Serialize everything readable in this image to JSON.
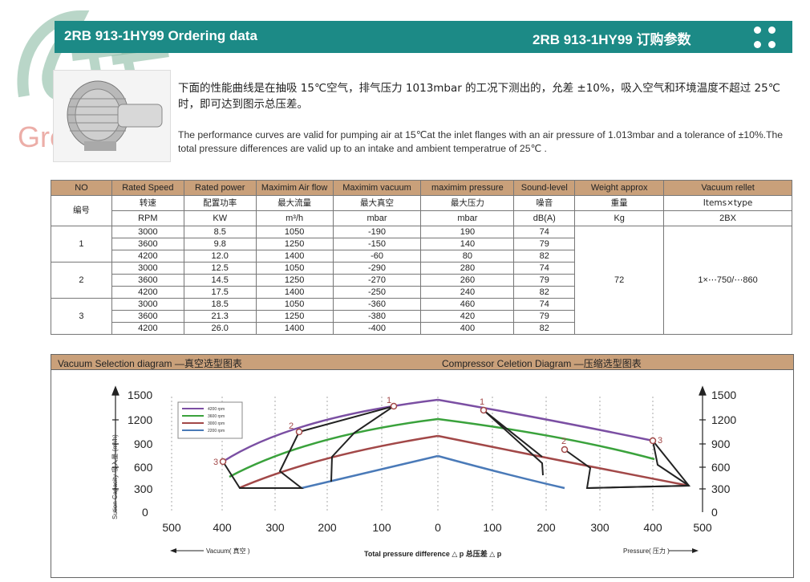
{
  "watermark": {
    "brand": "Greentech"
  },
  "header": {
    "title_en": "2RB 913-1HY99 Ordering data",
    "title_cn": "2RB  913-1HY99 订购参数"
  },
  "description": {
    "cn": "下面的性能曲线是在抽吸 15℃空气，排气压力 1013mbar 的工况下测出的，允差 ±10%，吸入空气和环境温度不超过 25℃时，即可达到图示总压差。",
    "en": "The performance curves are valid for pumping air at 15℃at the inlet flanges with an air pressure of 1.013mbar and a tolerance of ±10%.The total pressure differences are valid up to an intake and ambient temperatrue of 25℃ ."
  },
  "table": {
    "headers": [
      "NO",
      "Rated Speed",
      "Rated power",
      "Maximim Air flow",
      "Maximim vacuum",
      "maximim pressure",
      "Sound-level",
      "Weight approx",
      "Vacuum rellet"
    ],
    "no_cn": "编号",
    "cn_row": [
      "转速",
      "配置功率",
      "最大流量",
      "最大真空",
      "最大压力",
      "噪音",
      "重量",
      "Items×type"
    ],
    "unit_row": [
      "RPM",
      "KW",
      "m³/h",
      "mbar",
      "mbar",
      "dB(A)",
      "Kg",
      "2BX"
    ],
    "groups": [
      {
        "no": "1",
        "rows": [
          [
            "3000",
            "8.5",
            "1050",
            "-190",
            "190",
            "74"
          ],
          [
            "3600",
            "9.8",
            "1250",
            "-150",
            "140",
            "79"
          ],
          [
            "4200",
            "12.0",
            "1400",
            "-60",
            "80",
            "82"
          ]
        ]
      },
      {
        "no": "2",
        "rows": [
          [
            "3000",
            "12.5",
            "1050",
            "-290",
            "280",
            "74"
          ],
          [
            "3600",
            "14.5",
            "1250",
            "-270",
            "260",
            "79"
          ],
          [
            "4200",
            "17.5",
            "1400",
            "-250",
            "240",
            "82"
          ]
        ]
      },
      {
        "no": "3",
        "rows": [
          [
            "3000",
            "18.5",
            "1050",
            "-360",
            "460",
            "74"
          ],
          [
            "3600",
            "21.3",
            "1250",
            "-380",
            "420",
            "79"
          ],
          [
            "4200",
            "26.0",
            "1400",
            "-400",
            "400",
            "82"
          ]
        ]
      }
    ],
    "weight": "72",
    "rellet": "1×⋯750/⋯860"
  },
  "chart_head": {
    "left": "Vacuum Selection diagram —真空选型图表",
    "right": "Compressor Celetion Diagram —压缩选型图表"
  },
  "chart_data": {
    "type": "line",
    "ylabel": "Sution Capacity 吸入量 (m³/h)",
    "xlabel": "Total pressure difference △ p 总压差 △ p",
    "x_left_label": "Vacuum( 真空 )",
    "x_right_label": "Pressure( 压力 )",
    "yticks": [
      "1500",
      "1200",
      "900",
      "600",
      "300",
      "0"
    ],
    "xticks_left": [
      "500",
      "400",
      "300",
      "200",
      "100",
      "0"
    ],
    "xticks_right": [
      "100",
      "200",
      "300",
      "400",
      "500"
    ],
    "legend": [
      "4200 rpm",
      "3600 rpm",
      "3000 rpm",
      "2200 rpm"
    ],
    "point_labels": [
      "1",
      "2",
      "3"
    ],
    "colors": {
      "purple": "#7b4fa3",
      "green": "#3aa23c",
      "red": "#a24848",
      "blue": "#4a7ab8"
    }
  }
}
